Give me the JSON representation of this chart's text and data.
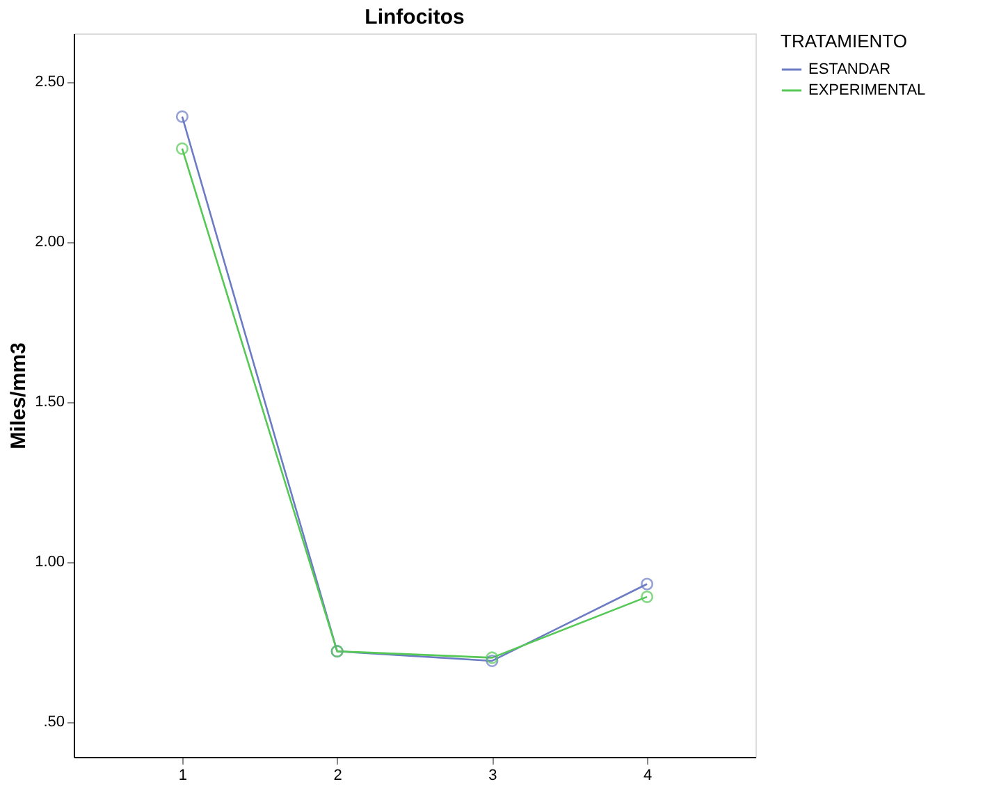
{
  "chart_data": {
    "type": "line",
    "title": "Linfocitos",
    "ylabel": "Miles/mm3",
    "legend_title": "TRATAMIENTO",
    "categories": [
      "1",
      "2",
      "3",
      "4"
    ],
    "series": [
      {
        "name": "ESTANDAR",
        "color": "#6b7cc4",
        "values": [
          2.39,
          0.72,
          0.69,
          0.93
        ]
      },
      {
        "name": "EXPERIMENTAL",
        "color": "#55c855",
        "values": [
          2.29,
          0.72,
          0.7,
          0.89
        ]
      }
    ],
    "ylim": [
      0.39,
      2.65
    ],
    "yticks": [
      {
        "value": 0.5,
        "label": ".50"
      },
      {
        "value": 1.0,
        "label": "1.00"
      },
      {
        "value": 1.5,
        "label": "1.50"
      },
      {
        "value": 2.0,
        "label": "2.00"
      },
      {
        "value": 2.5,
        "label": "2.50"
      }
    ],
    "marker": "circle",
    "line_style": "solid",
    "grid": false,
    "legend": "right"
  }
}
